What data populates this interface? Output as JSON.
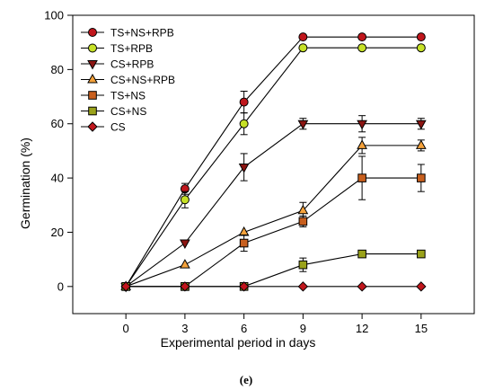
{
  "chart_data": {
    "type": "line",
    "xlabel": "Experimental period in days",
    "ylabel": "Germination (%)",
    "panel_label": "(e)",
    "x": [
      0,
      3,
      6,
      9,
      12,
      15
    ],
    "xlim": [
      -2.7,
      17.7
    ],
    "ylim": [
      -10,
      100
    ],
    "xticks": [
      0,
      3,
      6,
      9,
      12,
      15
    ],
    "yticks": [
      0,
      20,
      40,
      60,
      80,
      100
    ],
    "grid": false,
    "legend_position": "top-left",
    "series": [
      {
        "name": "TS+NS+RPB",
        "marker": "circle",
        "color": "#c0161c",
        "values": [
          0,
          36,
          68,
          92,
          92,
          92
        ],
        "errors": [
          0,
          2,
          4,
          0,
          0,
          0
        ]
      },
      {
        "name": "TS+RPB",
        "marker": "circle",
        "color": "#c6e126",
        "values": [
          0,
          32,
          60,
          88,
          88,
          88
        ],
        "errors": [
          0,
          3,
          4,
          0,
          0,
          0
        ]
      },
      {
        "name": "CS+RPB",
        "marker": "triangle-down",
        "color": "#8b1512",
        "values": [
          0,
          16,
          44,
          60,
          60,
          60
        ],
        "errors": [
          0,
          0,
          5,
          2,
          3,
          2
        ]
      },
      {
        "name": "CS+NS+RPB",
        "marker": "triangle-up",
        "color": "#f5a23b",
        "values": [
          0,
          8,
          20,
          28,
          52,
          52
        ],
        "errors": [
          0,
          0,
          0,
          3,
          3,
          2
        ]
      },
      {
        "name": "TS+NS",
        "marker": "square",
        "color": "#c85f1e",
        "values": [
          0,
          0,
          16,
          24,
          40,
          40
        ],
        "errors": [
          0,
          0,
          3,
          2,
          8,
          5
        ]
      },
      {
        "name": "CS+NS",
        "marker": "square",
        "color": "#9aa21a",
        "values": [
          0,
          0,
          0,
          8,
          12,
          12
        ],
        "errors": [
          0,
          0,
          0,
          2.5,
          0,
          0
        ]
      },
      {
        "name": "CS",
        "marker": "diamond",
        "color": "#c0161c",
        "values": [
          0,
          0,
          0,
          0,
          0,
          0
        ],
        "errors": [
          0,
          0,
          0,
          0,
          0,
          0
        ]
      }
    ]
  }
}
